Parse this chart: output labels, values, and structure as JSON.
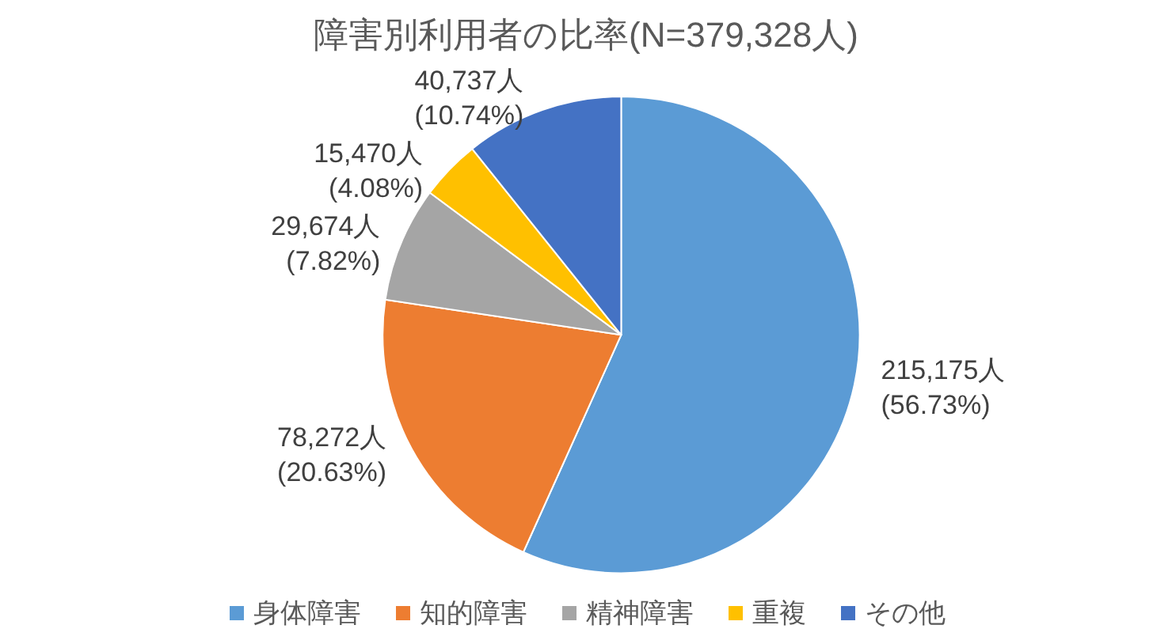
{
  "chart_data": {
    "type": "pie",
    "title": "障害別利用者の比率(N=379,328人)",
    "categories": [
      "身体障害",
      "知的障害",
      "精神障害",
      "重複",
      "その他"
    ],
    "values": [
      215175,
      78272,
      29674,
      15470,
      40737
    ],
    "colors": [
      "#5b9bd5",
      "#ed7d31",
      "#a5a5a5",
      "#ffc000",
      "#4472c4"
    ],
    "value_labels": [
      "215,175人\n(56.73%)",
      "78,272人\n(20.63%)",
      "29,674人\n(7.82%)",
      "15,470人\n(4.08%)",
      "40,737人\n(10.74%)"
    ],
    "legend": "bottom"
  }
}
